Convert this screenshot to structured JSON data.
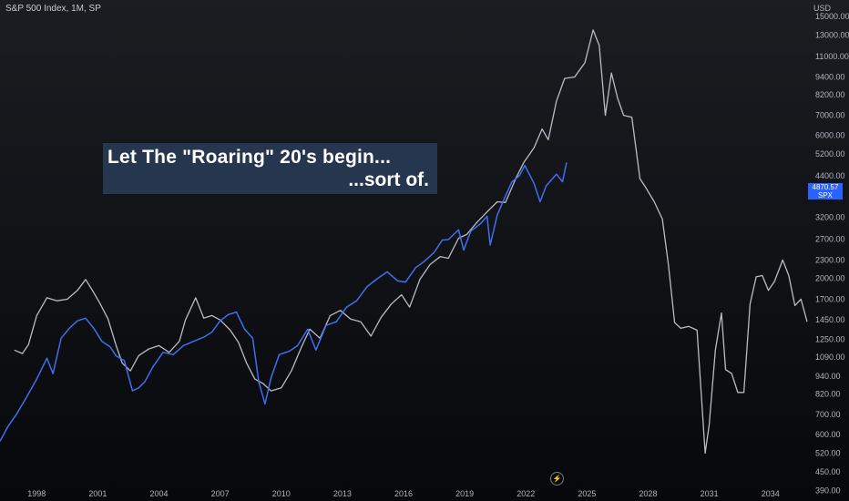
{
  "header": {
    "symbol": "S&P 500 Index, 1M, SP",
    "currency": "USD"
  },
  "annotation": {
    "line1": "Let The \"Roaring\" 20's begin...",
    "line2": "...sort of."
  },
  "price_badge": {
    "value": "4870.57",
    "label": "SPX",
    "color": "#2962ff"
  },
  "icons": {
    "bottom": "lightning-icon"
  },
  "colors": {
    "spx_line": "#3d6ff0",
    "analog_line": "#b8bcc4",
    "annotation_bg": "#26364f"
  },
  "chart_data": {
    "type": "line",
    "title": "",
    "y_scale": "log",
    "ylim": [
      360,
      17000
    ],
    "y_ticks": [
      "15000.00",
      "13000.00",
      "11000.00",
      "9400.00",
      "8200.00",
      "7000.00",
      "6000.00",
      "5200.00",
      "4400.00",
      "3200.00",
      "2700.00",
      "2300.00",
      "2000.00",
      "1700.00",
      "1450.00",
      "1250.00",
      "1090.00",
      "940.00",
      "820.00",
      "700.00",
      "600.00",
      "520.00",
      "450.00",
      "390.00"
    ],
    "xlim": [
      1996.2,
      2035.8
    ],
    "x_ticks": [
      "1998",
      "2001",
      "2004",
      "2007",
      "2010",
      "2013",
      "2016",
      "2019",
      "2022",
      "2025",
      "2028",
      "2031",
      "2034"
    ],
    "grid": false,
    "series": [
      {
        "color": "#3d6ff0",
        "points": [
          [
            1996.2,
            570
          ],
          [
            1996.6,
            640
          ],
          [
            1997.0,
            700
          ],
          [
            1997.5,
            800
          ],
          [
            1998.0,
            920
          ],
          [
            1998.5,
            1080
          ],
          [
            1998.8,
            960
          ],
          [
            1999.2,
            1260
          ],
          [
            1999.6,
            1360
          ],
          [
            2000.0,
            1440
          ],
          [
            2000.4,
            1470
          ],
          [
            2000.8,
            1360
          ],
          [
            2001.2,
            1230
          ],
          [
            2001.6,
            1180
          ],
          [
            2001.9,
            1100
          ],
          [
            2002.3,
            1060
          ],
          [
            2002.7,
            840
          ],
          [
            2003.0,
            860
          ],
          [
            2003.3,
            900
          ],
          [
            2003.7,
            1010
          ],
          [
            2004.2,
            1130
          ],
          [
            2004.7,
            1110
          ],
          [
            2005.2,
            1190
          ],
          [
            2005.7,
            1230
          ],
          [
            2006.2,
            1270
          ],
          [
            2006.6,
            1320
          ],
          [
            2007.0,
            1440
          ],
          [
            2007.4,
            1510
          ],
          [
            2007.8,
            1540
          ],
          [
            2008.2,
            1350
          ],
          [
            2008.6,
            1260
          ],
          [
            2008.9,
            900
          ],
          [
            2009.2,
            760
          ],
          [
            2009.5,
            930
          ],
          [
            2009.9,
            1110
          ],
          [
            2010.4,
            1140
          ],
          [
            2010.8,
            1190
          ],
          [
            2011.3,
            1350
          ],
          [
            2011.7,
            1150
          ],
          [
            2012.2,
            1390
          ],
          [
            2012.7,
            1430
          ],
          [
            2013.2,
            1600
          ],
          [
            2013.7,
            1680
          ],
          [
            2014.2,
            1870
          ],
          [
            2014.7,
            1990
          ],
          [
            2015.2,
            2100
          ],
          [
            2015.7,
            1960
          ],
          [
            2016.1,
            1940
          ],
          [
            2016.6,
            2170
          ],
          [
            2017.0,
            2270
          ],
          [
            2017.5,
            2440
          ],
          [
            2017.9,
            2680
          ],
          [
            2018.2,
            2690
          ],
          [
            2018.7,
            2900
          ],
          [
            2018.95,
            2480
          ],
          [
            2019.3,
            2870
          ],
          [
            2019.8,
            3050
          ],
          [
            2020.1,
            3220
          ],
          [
            2020.25,
            2580
          ],
          [
            2020.6,
            3250
          ],
          [
            2020.9,
            3630
          ],
          [
            2021.3,
            4180
          ],
          [
            2021.7,
            4410
          ],
          [
            2021.95,
            4760
          ],
          [
            2022.4,
            4150
          ],
          [
            2022.7,
            3600
          ],
          [
            2023.0,
            4070
          ],
          [
            2023.5,
            4450
          ],
          [
            2023.8,
            4200
          ],
          [
            2024.0,
            4870
          ]
        ]
      },
      {
        "color": "#b8bcc4",
        "points": [
          [
            1996.9,
            1150
          ],
          [
            1997.3,
            1120
          ],
          [
            1997.6,
            1200
          ],
          [
            1998.0,
            1500
          ],
          [
            1998.5,
            1720
          ],
          [
            1999.0,
            1680
          ],
          [
            1999.5,
            1700
          ],
          [
            2000.0,
            1820
          ],
          [
            2000.4,
            1980
          ],
          [
            2000.8,
            1790
          ],
          [
            2001.1,
            1650
          ],
          [
            2001.5,
            1460
          ],
          [
            2001.9,
            1190
          ],
          [
            2002.2,
            1040
          ],
          [
            2002.6,
            980
          ],
          [
            2003.0,
            1100
          ],
          [
            2003.5,
            1160
          ],
          [
            2004.0,
            1190
          ],
          [
            2004.5,
            1130
          ],
          [
            2005.0,
            1230
          ],
          [
            2005.3,
            1450
          ],
          [
            2005.8,
            1720
          ],
          [
            2006.2,
            1470
          ],
          [
            2006.6,
            1500
          ],
          [
            2007.0,
            1450
          ],
          [
            2007.5,
            1340
          ],
          [
            2007.9,
            1220
          ],
          [
            2008.3,
            1040
          ],
          [
            2008.7,
            920
          ],
          [
            2009.1,
            890
          ],
          [
            2009.5,
            840
          ],
          [
            2010.0,
            860
          ],
          [
            2010.5,
            980
          ],
          [
            2011.0,
            1180
          ],
          [
            2011.4,
            1350
          ],
          [
            2011.9,
            1260
          ],
          [
            2012.4,
            1500
          ],
          [
            2012.9,
            1560
          ],
          [
            2013.4,
            1460
          ],
          [
            2013.9,
            1430
          ],
          [
            2014.4,
            1280
          ],
          [
            2014.9,
            1480
          ],
          [
            2015.4,
            1640
          ],
          [
            2015.9,
            1760
          ],
          [
            2016.3,
            1600
          ],
          [
            2016.8,
            1980
          ],
          [
            2017.3,
            2220
          ],
          [
            2017.8,
            2360
          ],
          [
            2018.2,
            2330
          ],
          [
            2018.7,
            2720
          ],
          [
            2019.1,
            2800
          ],
          [
            2019.6,
            3070
          ],
          [
            2020.1,
            3330
          ],
          [
            2020.6,
            3600
          ],
          [
            2021.0,
            3580
          ],
          [
            2021.5,
            4300
          ],
          [
            2021.9,
            4870
          ],
          [
            2022.4,
            5450
          ],
          [
            2022.8,
            6300
          ],
          [
            2023.1,
            5800
          ],
          [
            2023.5,
            7800
          ],
          [
            2023.9,
            9300
          ],
          [
            2024.4,
            9400
          ],
          [
            2024.9,
            10500
          ],
          [
            2025.3,
            13500
          ],
          [
            2025.6,
            12000
          ],
          [
            2025.9,
            7000
          ],
          [
            2026.2,
            9700
          ],
          [
            2026.5,
            8000
          ],
          [
            2026.8,
            7000
          ],
          [
            2027.2,
            6900
          ],
          [
            2027.6,
            4300
          ],
          [
            2027.9,
            4000
          ],
          [
            2028.3,
            3600
          ],
          [
            2028.7,
            3150
          ],
          [
            2029.0,
            2200
          ],
          [
            2029.3,
            1420
          ],
          [
            2029.6,
            1360
          ],
          [
            2030.0,
            1380
          ],
          [
            2030.4,
            1340
          ],
          [
            2030.8,
            520
          ],
          [
            2031.0,
            650
          ],
          [
            2031.3,
            1150
          ],
          [
            2031.6,
            1530
          ],
          [
            2031.8,
            990
          ],
          [
            2032.1,
            960
          ],
          [
            2032.4,
            830
          ],
          [
            2032.7,
            830
          ],
          [
            2033.0,
            1640
          ],
          [
            2033.3,
            2020
          ],
          [
            2033.6,
            2040
          ],
          [
            2033.9,
            1820
          ],
          [
            2034.2,
            1950
          ],
          [
            2034.6,
            2300
          ],
          [
            2034.9,
            2040
          ],
          [
            2035.2,
            1620
          ],
          [
            2035.5,
            1700
          ],
          [
            2035.8,
            1430
          ]
        ]
      }
    ]
  }
}
